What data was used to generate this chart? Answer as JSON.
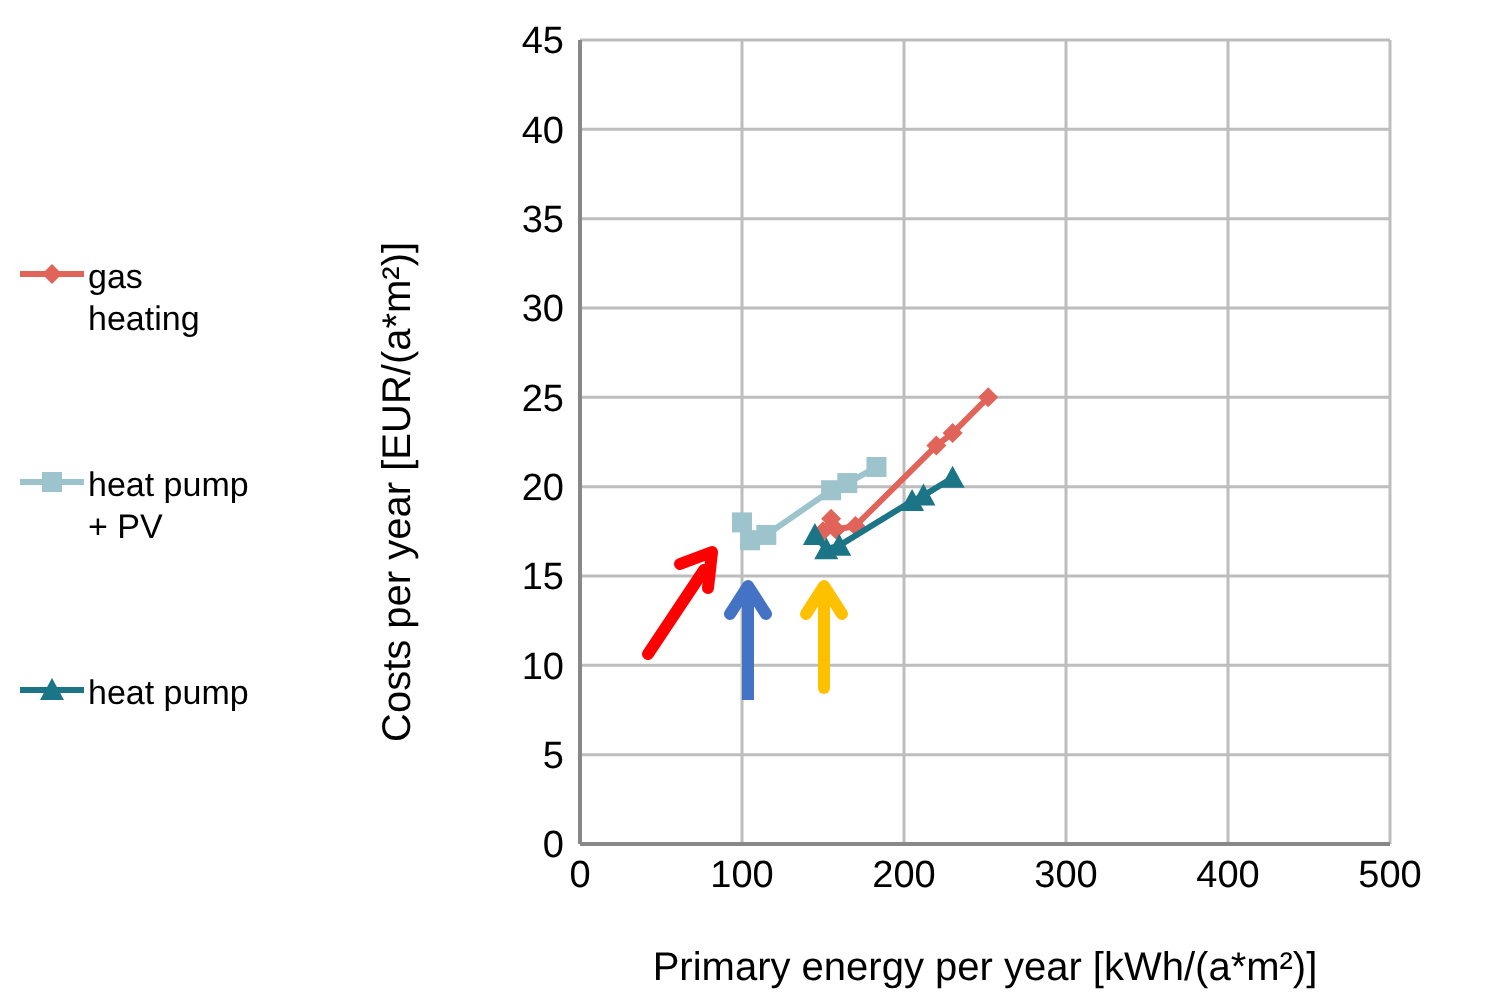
{
  "chart_data": {
    "type": "line",
    "xlabel": "Primary energy per year [kWh/(a*m²)]",
    "ylabel": "Costs per year [EUR/(a*m²)]",
    "series": [
      {
        "name": "gas heating",
        "color": "#e0645a",
        "marker": "diamond",
        "x": [
          150,
          155,
          158,
          170,
          220,
          230,
          252
        ],
        "values": [
          17.5,
          18.2,
          17.6,
          17.8,
          22.3,
          23,
          25
        ]
      },
      {
        "name": "heat pump + PV",
        "color": "#9dc3cc",
        "marker": "square",
        "x": [
          100,
          105,
          115,
          155,
          165,
          183
        ],
        "values": [
          18,
          17,
          17.3,
          19.8,
          20.2,
          21.1
        ]
      },
      {
        "name": "heat pump",
        "color": "#1b7586",
        "marker": "triangle",
        "x": [
          145,
          152,
          160,
          205,
          212,
          230
        ],
        "values": [
          17.3,
          16.5,
          16.7,
          19.2,
          19.5,
          20.5
        ]
      }
    ],
    "xlim": [
      0,
      500
    ],
    "xticks": [
      0,
      100,
      200,
      300,
      400,
      500
    ],
    "ylim": [
      0,
      45
    ],
    "yticks": [
      0,
      5,
      10,
      15,
      20,
      25,
      30,
      35,
      40,
      45
    ],
    "grid": true,
    "legend": "left"
  }
}
